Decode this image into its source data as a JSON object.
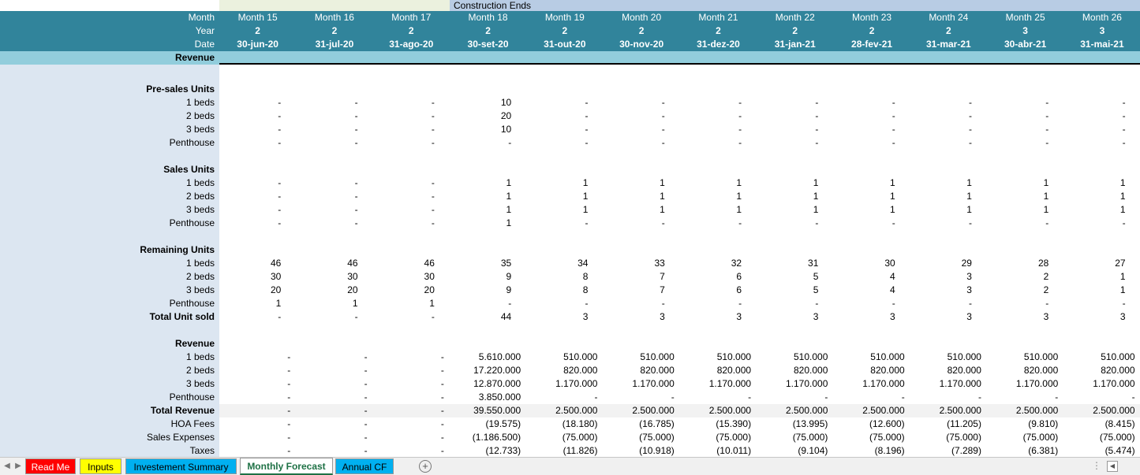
{
  "colors": {
    "header_teal": "#31849b",
    "label_blue": "#dce6f1",
    "construction_band": "#b8cce4",
    "revenue_band": "#92cddc",
    "tab_read_me": "#ff0000",
    "tab_inputs": "#ffff00",
    "tab_investment": "#00b0f0",
    "tab_active": "#ffffff",
    "tab_annual": "#00b0f0"
  },
  "banner": "Construction Ends",
  "header": {
    "month_label": "Month",
    "year_label": "Year",
    "date_label": "Date",
    "months": [
      "Month 15",
      "Month 16",
      "Month 17",
      "Month 18",
      "Month 19",
      "Month 20",
      "Month 21",
      "Month 22",
      "Month 23",
      "Month 24",
      "Month 25",
      "Month 26"
    ],
    "years": [
      "2",
      "2",
      "2",
      "2",
      "2",
      "2",
      "2",
      "2",
      "2",
      "2",
      "3",
      "3"
    ],
    "dates": [
      "30-jun-20",
      "31-jul-20",
      "31-ago-20",
      "30-set-20",
      "31-out-20",
      "30-nov-20",
      "31-dez-20",
      "31-jan-21",
      "28-fev-21",
      "31-mar-21",
      "30-abr-21",
      "31-mai-21"
    ]
  },
  "revenue_header": "Revenue",
  "sections": [
    {
      "title": "Pre-sales Units",
      "rows": [
        {
          "label": "1 beds",
          "values": [
            "-",
            "-",
            "-",
            "10",
            "-",
            "-",
            "-",
            "-",
            "-",
            "-",
            "-",
            "-"
          ]
        },
        {
          "label": "2 beds",
          "values": [
            "-",
            "-",
            "-",
            "20",
            "-",
            "-",
            "-",
            "-",
            "-",
            "-",
            "-",
            "-"
          ]
        },
        {
          "label": "3 beds",
          "values": [
            "-",
            "-",
            "-",
            "10",
            "-",
            "-",
            "-",
            "-",
            "-",
            "-",
            "-",
            "-"
          ]
        },
        {
          "label": "Penthouse",
          "values": [
            "-",
            "-",
            "-",
            "-",
            "-",
            "-",
            "-",
            "-",
            "-",
            "-",
            "-",
            "-"
          ]
        }
      ]
    },
    {
      "title": "Sales Units",
      "rows": [
        {
          "label": "1 beds",
          "values": [
            "-",
            "-",
            "-",
            "1",
            "1",
            "1",
            "1",
            "1",
            "1",
            "1",
            "1",
            "1"
          ]
        },
        {
          "label": "2 beds",
          "values": [
            "-",
            "-",
            "-",
            "1",
            "1",
            "1",
            "1",
            "1",
            "1",
            "1",
            "1",
            "1"
          ]
        },
        {
          "label": "3 beds",
          "values": [
            "-",
            "-",
            "-",
            "1",
            "1",
            "1",
            "1",
            "1",
            "1",
            "1",
            "1",
            "1"
          ]
        },
        {
          "label": "Penthouse",
          "values": [
            "-",
            "-",
            "-",
            "1",
            "-",
            "-",
            "-",
            "-",
            "-",
            "-",
            "-",
            "-"
          ]
        }
      ]
    },
    {
      "title": "Remaining Units",
      "rows": [
        {
          "label": "1 beds",
          "values": [
            "46",
            "46",
            "46",
            "35",
            "34",
            "33",
            "32",
            "31",
            "30",
            "29",
            "28",
            "27"
          ]
        },
        {
          "label": "2 beds",
          "values": [
            "30",
            "30",
            "30",
            "9",
            "8",
            "7",
            "6",
            "5",
            "4",
            "3",
            "2",
            "1"
          ]
        },
        {
          "label": "3 beds",
          "values": [
            "20",
            "20",
            "20",
            "9",
            "8",
            "7",
            "6",
            "5",
            "4",
            "3",
            "2",
            "1"
          ]
        },
        {
          "label": "Penthouse",
          "values": [
            "1",
            "1",
            "1",
            "-",
            "-",
            "-",
            "-",
            "-",
            "-",
            "-",
            "-",
            "-"
          ]
        },
        {
          "label": "Total Unit sold",
          "bold": true,
          "values": [
            "-",
            "-",
            "-",
            "44",
            "3",
            "3",
            "3",
            "3",
            "3",
            "3",
            "3",
            "3"
          ]
        }
      ]
    },
    {
      "title": "Revenue",
      "rows": [
        {
          "label": "1 beds",
          "values": [
            "-",
            "-",
            "-",
            "5.610.000",
            "510.000",
            "510.000",
            "510.000",
            "510.000",
            "510.000",
            "510.000",
            "510.000",
            "510.000"
          ]
        },
        {
          "label": "2 beds",
          "values": [
            "-",
            "-",
            "-",
            "17.220.000",
            "820.000",
            "820.000",
            "820.000",
            "820.000",
            "820.000",
            "820.000",
            "820.000",
            "820.000"
          ]
        },
        {
          "label": "3 beds",
          "values": [
            "-",
            "-",
            "-",
            "12.870.000",
            "1.170.000",
            "1.170.000",
            "1.170.000",
            "1.170.000",
            "1.170.000",
            "1.170.000",
            "1.170.000",
            "1.170.000"
          ]
        },
        {
          "label": "Penthouse",
          "values": [
            "-",
            "-",
            "-",
            "3.850.000",
            "-",
            "-",
            "-",
            "-",
            "-",
            "-",
            "-",
            "-"
          ]
        },
        {
          "label": "Total Revenue",
          "bold": true,
          "shade": true,
          "values": [
            "-",
            "-",
            "-",
            "39.550.000",
            "2.500.000",
            "2.500.000",
            "2.500.000",
            "2.500.000",
            "2.500.000",
            "2.500.000",
            "2.500.000",
            "2.500.000"
          ]
        },
        {
          "label": "HOA Fees",
          "values": [
            "-",
            "-",
            "-",
            "(19.575)",
            "(18.180)",
            "(16.785)",
            "(15.390)",
            "(13.995)",
            "(12.600)",
            "(11.205)",
            "(9.810)",
            "(8.415)"
          ]
        },
        {
          "label": "Sales Expenses",
          "values": [
            "-",
            "-",
            "-",
            "(1.186.500)",
            "(75.000)",
            "(75.000)",
            "(75.000)",
            "(75.000)",
            "(75.000)",
            "(75.000)",
            "(75.000)",
            "(75.000)"
          ]
        },
        {
          "label": "Taxes",
          "values": [
            "-",
            "-",
            "-",
            "(12.733)",
            "(11.826)",
            "(10.918)",
            "(10.011)",
            "(9.104)",
            "(8.196)",
            "(7.289)",
            "(6.381)",
            "(5.474)"
          ]
        }
      ]
    }
  ],
  "tabs": [
    {
      "label": "Read Me",
      "name": "tab-read-me",
      "color": "#ff0000",
      "text": "#ffffff",
      "active": false
    },
    {
      "label": "Inputs",
      "name": "tab-inputs",
      "color": "#ffff00",
      "text": "#000000",
      "active": false
    },
    {
      "label": "Investement Summary",
      "name": "tab-investement-summary",
      "color": "#00b0f0",
      "text": "#000000",
      "active": false
    },
    {
      "label": "Monthly Forecast",
      "name": "tab-monthly-forecast",
      "color": "#ffffff",
      "text": "#1e7145",
      "active": true
    },
    {
      "label": "Annual CF",
      "name": "tab-annual-cf",
      "color": "#00b0f0",
      "text": "#000000",
      "active": false
    }
  ]
}
